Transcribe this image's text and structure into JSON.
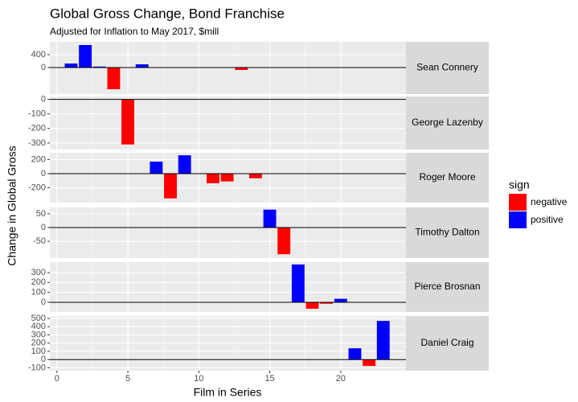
{
  "chart_data": {
    "type": "bar",
    "title": "Global Gross Change, Bond Franchise",
    "subtitle": "Adjusted for Inflation to May 2017, $mill",
    "x_label": "Film in Series",
    "y_label": "Change in Global Gross",
    "xlim": [
      -0.5,
      24.6
    ],
    "xticks": [
      0,
      5,
      10,
      15,
      20
    ],
    "legend": {
      "title": "sign",
      "items": [
        {
          "name": "negative",
          "color": "#ff0000"
        },
        {
          "name": "positive",
          "color": "#0000ff"
        }
      ]
    },
    "facets": [
      {
        "name": "Sean Connery",
        "x": [
          1,
          2,
          3,
          4,
          6,
          13
        ],
        "values": [
          125,
          700,
          30,
          -675,
          100,
          -75
        ],
        "ylim": [
          -825,
          800
        ],
        "yticks": [
          400,
          0
        ]
      },
      {
        "name": "George Lazenby",
        "x": [
          5
        ],
        "values": [
          -310
        ],
        "ylim": [
          -345,
          20
        ],
        "yticks": [
          0,
          -100,
          -200,
          -300
        ]
      },
      {
        "name": "Roger Moore",
        "x": [
          7,
          8,
          9,
          11,
          12,
          14
        ],
        "values": [
          170,
          -350,
          260,
          -135,
          -110,
          -65
        ],
        "ylim": [
          -410,
          296
        ],
        "yticks": [
          200,
          0,
          -200
        ]
      },
      {
        "name": "Timothy Dalton",
        "x": [
          15,
          16
        ],
        "values": [
          65,
          -97
        ],
        "ylim": [
          -111,
          73
        ],
        "yticks": [
          50,
          0,
          -50
        ]
      },
      {
        "name": "Pierce Brosnan",
        "x": [
          17,
          18,
          19,
          20
        ],
        "values": [
          382,
          -65,
          -15,
          35
        ],
        "ylim": [
          -98,
          406
        ],
        "yticks": [
          300,
          200,
          100,
          0
        ]
      },
      {
        "name": "Daniel Craig",
        "x": [
          21,
          22,
          23
        ],
        "values": [
          137,
          -78,
          470
        ],
        "ylim": [
          -135,
          530
        ],
        "yticks": [
          500,
          400,
          300,
          200,
          100,
          0,
          -100
        ]
      }
    ]
  }
}
